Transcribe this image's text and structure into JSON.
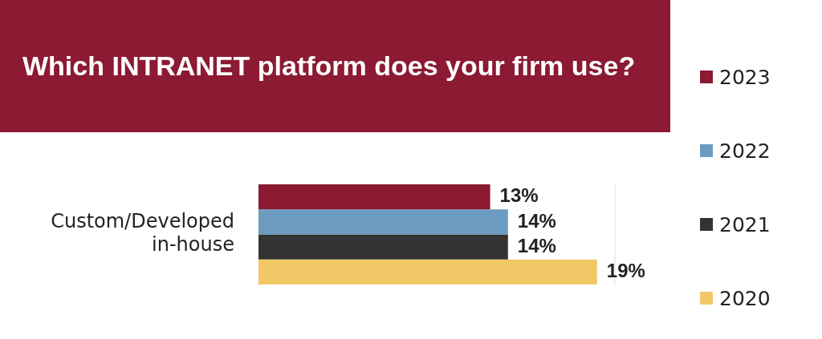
{
  "chart_data": {
    "type": "bar",
    "orientation": "horizontal",
    "title": "Which INTRANET platform does your firm use?",
    "categories": [
      "Custom/Developed in-house"
    ],
    "series": [
      {
        "name": "2023",
        "color": "#8b1a32",
        "values": [
          13
        ],
        "value_labels": [
          "13%"
        ]
      },
      {
        "name": "2022",
        "color": "#6b9bc0",
        "values": [
          14
        ],
        "value_labels": [
          "14%"
        ]
      },
      {
        "name": "2021",
        "color": "#333333",
        "values": [
          14
        ],
        "value_labels": [
          "14%"
        ]
      },
      {
        "name": "2020",
        "color": "#f2c867",
        "values": [
          19
        ],
        "value_labels": [
          "19%"
        ]
      }
    ],
    "xlim": [
      0,
      20
    ],
    "tick_labels": "y",
    "legend": "right"
  }
}
